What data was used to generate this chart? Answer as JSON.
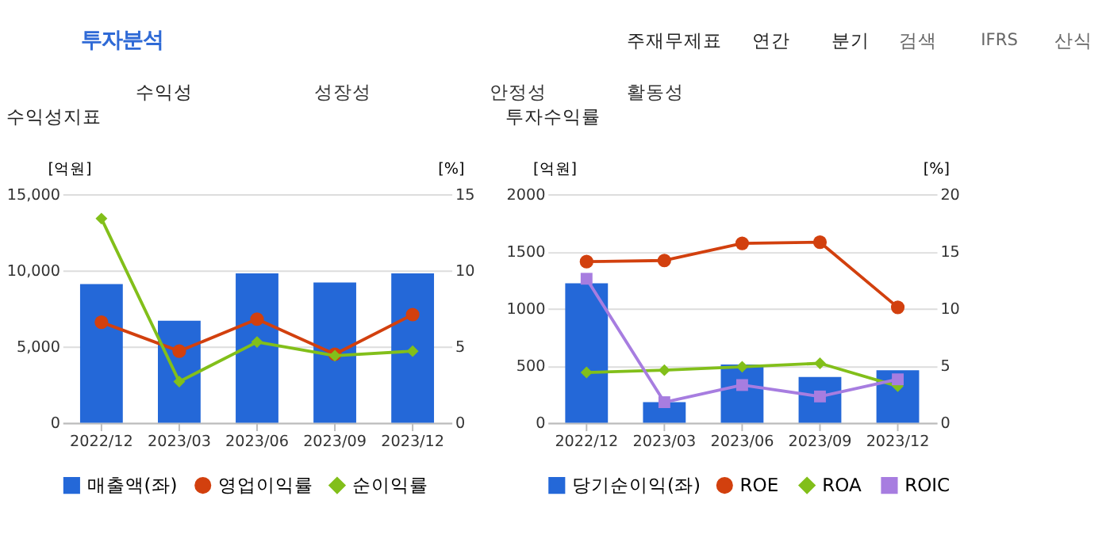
{
  "chart_data": [
    {
      "type": "bar",
      "title": "수익성지표",
      "annotations": [
        "투자분석",
        "주재무제표",
        "연간",
        "분기",
        "검색",
        "IFRS",
        "산식",
        "수익성",
        "성장성",
        "안정성",
        "활동성"
      ],
      "categories": [
        "2022/12",
        "2023/03",
        "2023/06",
        "2023/09",
        "2023/12"
      ],
      "ylabel": "[억원]",
      "y2label": "[%]",
      "ylim": [
        0,
        15000
      ],
      "yticks": [
        {
          "value": 0,
          "label": "0"
        },
        {
          "value": 5000,
          "label": "5,000"
        },
        {
          "value": 10000,
          "label": "10,000"
        },
        {
          "value": 15000,
          "label": "15,000"
        }
      ],
      "y2lim": [
        0,
        15
      ],
      "y2ticks": [
        0,
        5,
        10,
        15
      ],
      "grid": "y",
      "legend": "bottom",
      "series": [
        {
          "name": "매출액(좌)",
          "color": "#2468d8",
          "values": [
            9100,
            6700,
            9800,
            9200,
            9800
          ]
        },
        {
          "name": "영업이익률",
          "type": "line",
          "axis": "y2",
          "marker": "circle",
          "color": "#d2400e",
          "values": [
            6.6,
            4.7,
            6.8,
            4.5,
            7.1
          ]
        },
        {
          "name": "순이익률",
          "type": "line",
          "axis": "y2",
          "marker": "diamond",
          "color": "#82bf1a",
          "values": [
            13.4,
            2.7,
            5.3,
            4.4,
            4.7
          ]
        }
      ]
    },
    {
      "type": "bar",
      "title": "투자수익률",
      "categories": [
        "2022/12",
        "2023/03",
        "2023/06",
        "2023/09",
        "2023/12"
      ],
      "ylabel": "[억원]",
      "y2label": "[%]",
      "ylim": [
        0,
        2000
      ],
      "yticks": [
        0,
        500,
        1000,
        1500,
        2000
      ],
      "y2lim": [
        0,
        20
      ],
      "y2ticks": [
        0,
        5,
        10,
        15,
        20
      ],
      "grid": "y",
      "legend": "bottom",
      "series": [
        {
          "name": "당기순이익(좌)",
          "color": "#2468d8",
          "values": [
            1220,
            180,
            510,
            400,
            460
          ]
        },
        {
          "name": "ROE",
          "type": "line",
          "axis": "y2",
          "marker": "circle",
          "color": "#d2400e",
          "values": [
            14.1,
            14.2,
            15.7,
            15.8,
            10.1
          ]
        },
        {
          "name": "ROA",
          "type": "line",
          "axis": "y2",
          "marker": "diamond",
          "color": "#82bf1a",
          "values": [
            4.4,
            4.6,
            4.9,
            5.2,
            3.2
          ]
        },
        {
          "name": "ROIC",
          "type": "line",
          "axis": "y2",
          "marker": "square",
          "color": "#a77de0",
          "values": [
            12.6,
            1.8,
            3.3,
            2.3,
            3.8
          ]
        }
      ]
    }
  ]
}
